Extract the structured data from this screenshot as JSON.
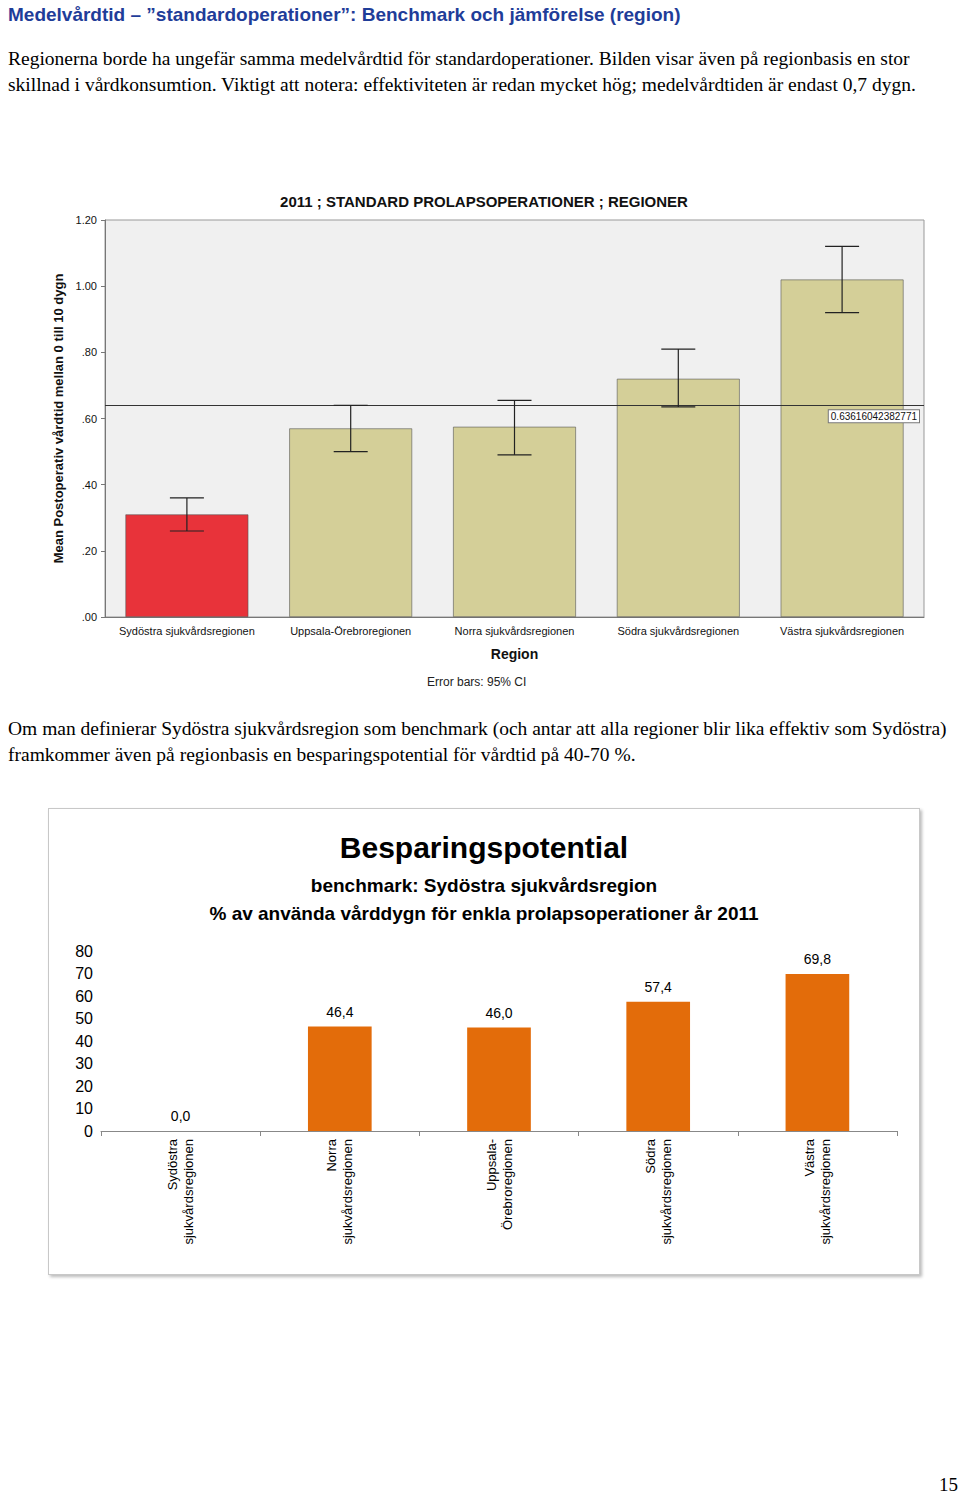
{
  "header": {
    "title": "Medelvårdtid – ”standardoperationer”: Benchmark och jämförelse (region)"
  },
  "paragraphs": [
    "Regionerna borde ha ungefär samma medelvårdtid för standardoperationer. Bilden visar även på regionbasis en stor skillnad i vårdkonsumtion. Viktigt att notera: effektiviteten är redan mycket hög; medelvårdtiden är endast 0,7 dygn.",
    "Om man definierar Sydöstra sjukvårdsregion som benchmark (och antar att alla regioner blir lika effektiv som Sydöstra) framkommer även på regionbasis en besparingspotential för vårdtid på 40-70 %."
  ],
  "chart_data": [
    {
      "type": "bar",
      "title": "2011 ; STANDARD PROLAPSOPERATIONER ; REGIONER",
      "x_label": "Region",
      "y_label": "Mean Postoperativ vårdtid mellan 0 till 10 dygn",
      "note": "Error bars: 95% CI",
      "categories": [
        "Sydöstra sjukvårdsregionen",
        "Uppsala-Örebroregionen",
        "Norra sjukvårdsregionen",
        "Södra sjukvårdsregionen",
        "Västra sjukvårdsregionen"
      ],
      "values": [
        0.31,
        0.57,
        0.575,
        0.72,
        1.02
      ],
      "error_low": [
        0.26,
        0.5,
        0.49,
        0.635,
        0.92
      ],
      "error_high": [
        0.36,
        0.64,
        0.655,
        0.81,
        1.12
      ],
      "colors": [
        "#e8333a",
        "#d4cf98",
        "#d4cf98",
        "#d4cf98",
        "#d4cf98"
      ],
      "reference_line": 0.63616042382771,
      "ylim": [
        0,
        1.2
      ],
      "yticks": [
        {
          "value": 0,
          "label": ".00"
        },
        {
          "value": 0.2,
          "label": ".20"
        },
        {
          "value": 0.4,
          "label": ".40"
        },
        {
          "value": 0.6,
          "label": ".60"
        },
        {
          "value": 0.8,
          "label": ".80"
        },
        {
          "value": 1.0,
          "label": "1.00"
        },
        {
          "value": 1.2,
          "label": "1.20"
        }
      ],
      "grid": false
    },
    {
      "type": "bar",
      "title": "Besparingspotential",
      "subtitle": [
        "benchmark: Sydöstra sjukvårdsregion",
        "% av använda vårddygn för enkla prolapsoperationer år 2011"
      ],
      "categories": [
        "Sydöstra\nsjukvårdsregionen",
        "Norra\nsjukvårdsregionen",
        "Uppsala-\nÖrebroregionen",
        "Södra\nsjukvårdsregionen",
        "Västra\nsjukvårdsregionen"
      ],
      "values": [
        0.0,
        46.4,
        46.0,
        57.4,
        69.8
      ],
      "value_labels": [
        "0,0",
        "46,4",
        "46,0",
        "57,4",
        "69,8"
      ],
      "color": "#e36c0a",
      "data_labels": true,
      "ylim": [
        0,
        80
      ],
      "yticks": [
        0,
        10,
        20,
        30,
        40,
        50,
        60,
        70,
        80
      ],
      "grid": false
    }
  ],
  "page_number": 15
}
